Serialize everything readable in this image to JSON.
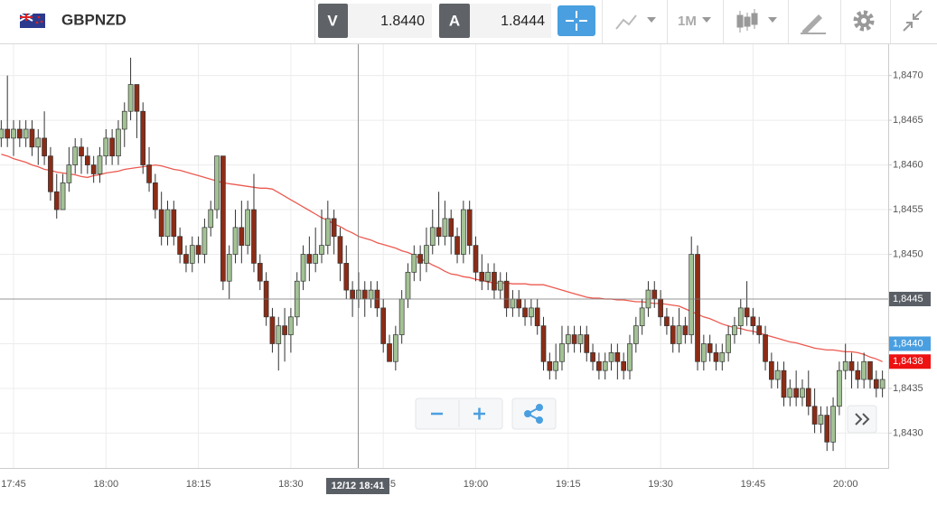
{
  "toolbar": {
    "symbol": "GBPNZD",
    "bid": {
      "label": "V",
      "price": "1.8440"
    },
    "ask": {
      "label": "A",
      "price": "1.8444"
    },
    "timeframe": "1M"
  },
  "chart_data": {
    "type": "candlestick",
    "categories": [
      null,
      null,
      "17:45",
      null,
      null,
      null,
      null,
      null,
      null,
      null,
      null,
      null,
      null,
      null,
      null,
      null,
      null,
      "18:00",
      null,
      null,
      null,
      null,
      null,
      null,
      null,
      null,
      null,
      null,
      null,
      null,
      null,
      null,
      "18:15",
      null,
      null,
      null,
      null,
      null,
      null,
      null,
      null,
      null,
      null,
      null,
      null,
      null,
      null,
      "18:30",
      null,
      null,
      null,
      null,
      null,
      null,
      null,
      null,
      null,
      null,
      null,
      null,
      null,
      null,
      "18:45",
      null,
      null,
      null,
      null,
      null,
      null,
      null,
      null,
      null,
      null,
      null,
      null,
      null,
      null,
      "19:00",
      null,
      null,
      null,
      null,
      null,
      null,
      null,
      null,
      null,
      null,
      null,
      null,
      null,
      null,
      "19:15",
      null,
      null,
      null,
      null,
      null,
      null,
      null,
      null,
      null,
      null,
      null,
      null,
      null,
      null,
      "19:30",
      null,
      null,
      null,
      null,
      null,
      null,
      null,
      null,
      null,
      null,
      null,
      null,
      null,
      null,
      "19:45",
      null,
      null,
      null,
      null,
      null,
      null,
      null,
      null,
      null,
      null,
      null,
      null,
      null,
      null,
      "20:00",
      null,
      null,
      null,
      null,
      null,
      null
    ],
    "open": [
      1.8463,
      1.8464,
      1.8463,
      1.8464,
      1.8463,
      1.8464,
      1.8462,
      1.8463,
      1.8461,
      1.8457,
      1.8455,
      1.8458,
      1.846,
      1.8462,
      1.8461,
      1.846,
      1.8459,
      1.8461,
      1.8463,
      1.8461,
      1.8464,
      1.8466,
      1.8469,
      1.8466,
      1.846,
      1.8458,
      1.8455,
      1.8452,
      1.8455,
      1.8452,
      1.845,
      1.8449,
      1.8451,
      1.845,
      1.8453,
      1.8455,
      1.8461,
      1.8447,
      1.845,
      1.8453,
      1.8451,
      1.8455,
      1.8449,
      1.8447,
      1.8443,
      1.844,
      1.8442,
      1.8441,
      1.8443,
      1.8447,
      1.845,
      1.8449,
      1.845,
      1.8451,
      1.8454,
      1.8452,
      1.8449,
      1.8446,
      1.8445,
      1.8446,
      1.8445,
      1.8446,
      1.8444,
      1.844,
      1.8438,
      1.8441,
      1.8445,
      1.8448,
      1.845,
      1.8449,
      1.8451,
      1.8453,
      1.8452,
      1.8454,
      1.8452,
      1.845,
      1.8455,
      1.8451,
      1.8448,
      1.8447,
      1.8448,
      1.8446,
      1.8447,
      1.8444,
      1.8445,
      1.8444,
      1.8443,
      1.8444,
      1.8442,
      1.8438,
      1.8437,
      1.8438,
      1.844,
      1.8441,
      1.844,
      1.8441,
      1.8439,
      1.8438,
      1.8437,
      1.8438,
      1.8439,
      1.8438,
      1.8437,
      1.844,
      1.8442,
      1.8444,
      1.8446,
      1.8445,
      1.8443,
      1.8442,
      1.844,
      1.8442,
      1.8441,
      1.845,
      1.8438,
      1.844,
      1.8439,
      1.8438,
      1.8439,
      1.8441,
      1.8442,
      1.8444,
      1.8443,
      1.8442,
      1.8441,
      1.8438,
      1.8436,
      1.8437,
      1.8434,
      1.8435,
      1.8434,
      1.8435,
      1.8433,
      1.8431,
      1.8432,
      1.8429,
      1.8433,
      1.8437,
      1.8438,
      1.8437,
      1.8436,
      1.8438,
      1.8436,
      1.8435
    ],
    "high": [
      1.8465,
      1.847,
      1.8465,
      1.8465,
      1.8465,
      1.8465,
      1.8464,
      1.8466,
      1.8462,
      1.8459,
      1.8459,
      1.8462,
      1.8463,
      1.8463,
      1.8462,
      1.8461,
      1.8462,
      1.8464,
      1.8464,
      1.8465,
      1.8467,
      1.8472,
      1.8469,
      1.8467,
      1.8462,
      1.8459,
      1.8457,
      1.8456,
      1.8456,
      1.8453,
      1.8451,
      1.8452,
      1.8452,
      1.8454,
      1.8456,
      1.8461,
      1.8461,
      1.8451,
      1.8455,
      1.8456,
      1.8456,
      1.8459,
      1.845,
      1.8448,
      1.8444,
      1.8443,
      1.8444,
      1.8444,
      1.8448,
      1.8451,
      1.8452,
      1.8453,
      1.8455,
      1.8456,
      1.8455,
      1.8453,
      1.8451,
      1.8447,
      1.8448,
      1.8447,
      1.8447,
      1.8447,
      1.8445,
      1.8441,
      1.8442,
      1.8446,
      1.8449,
      1.8451,
      1.8451,
      1.8453,
      1.8455,
      1.8457,
      1.8456,
      1.8455,
      1.8453,
      1.8456,
      1.8456,
      1.8452,
      1.845,
      1.8449,
      1.8449,
      1.8448,
      1.8448,
      1.8446,
      1.8446,
      1.8445,
      1.8445,
      1.8445,
      1.8443,
      1.8439,
      1.844,
      1.8442,
      1.8442,
      1.8442,
      1.8442,
      1.8442,
      1.844,
      1.8439,
      1.8439,
      1.844,
      1.844,
      1.8439,
      1.8441,
      1.8443,
      1.8445,
      1.8447,
      1.8447,
      1.8446,
      1.8444,
      1.8443,
      1.8444,
      1.8443,
      1.8452,
      1.8451,
      1.8441,
      1.8441,
      1.844,
      1.844,
      1.8442,
      1.8443,
      1.8445,
      1.8447,
      1.8444,
      1.8443,
      1.8442,
      1.8439,
      1.8438,
      1.8438,
      1.8436,
      1.8437,
      1.8436,
      1.8437,
      1.8435,
      1.8433,
      1.8433,
      1.8434,
      1.8438,
      1.844,
      1.8439,
      1.8438,
      1.8439,
      1.8438,
      1.8437,
      1.8437
    ],
    "low": [
      1.8462,
      1.8462,
      1.8461,
      1.8462,
      1.8462,
      1.8461,
      1.846,
      1.846,
      1.8456,
      1.8454,
      1.8455,
      1.8457,
      1.8459,
      1.8459,
      1.8459,
      1.8458,
      1.8458,
      1.846,
      1.846,
      1.846,
      1.8462,
      1.8465,
      1.8463,
      1.8459,
      1.8457,
      1.8454,
      1.8451,
      1.8451,
      1.8451,
      1.8449,
      1.8448,
      1.8448,
      1.8449,
      1.8449,
      1.8452,
      1.8454,
      1.8446,
      1.8445,
      1.8449,
      1.8449,
      1.845,
      1.8448,
      1.8446,
      1.8442,
      1.8439,
      1.8437,
      1.8438,
      1.8439,
      1.8442,
      1.8446,
      1.8447,
      1.8448,
      1.8449,
      1.845,
      1.845,
      1.8447,
      1.8445,
      1.8443,
      1.8444,
      1.8443,
      1.8444,
      1.8443,
      1.8439,
      1.8438,
      1.8437,
      1.844,
      1.8444,
      1.8447,
      1.8447,
      1.8448,
      1.845,
      1.8451,
      1.8451,
      1.845,
      1.8449,
      1.8449,
      1.845,
      1.8447,
      1.8446,
      1.8446,
      1.8445,
      1.8445,
      1.8443,
      1.8443,
      1.8443,
      1.8442,
      1.8442,
      1.8441,
      1.8437,
      1.8436,
      1.8436,
      1.8437,
      1.8439,
      1.8439,
      1.8439,
      1.8438,
      1.8437,
      1.8436,
      1.8436,
      1.8437,
      1.8436,
      1.8436,
      1.8436,
      1.8439,
      1.8441,
      1.8443,
      1.8444,
      1.8442,
      1.8441,
      1.8439,
      1.8439,
      1.844,
      1.844,
      1.8437,
      1.8437,
      1.8438,
      1.8437,
      1.8437,
      1.8438,
      1.844,
      1.8441,
      1.8442,
      1.8441,
      1.844,
      1.8437,
      1.8435,
      1.8435,
      1.8433,
      1.8433,
      1.8433,
      1.8433,
      1.8432,
      1.843,
      1.843,
      1.8428,
      1.8428,
      1.8432,
      1.8436,
      1.8435,
      1.8435,
      1.8435,
      1.8435,
      1.8434,
      1.8434
    ],
    "close": [
      1.8464,
      1.8463,
      1.8464,
      1.8463,
      1.8464,
      1.8462,
      1.8463,
      1.8461,
      1.8457,
      1.8455,
      1.8458,
      1.846,
      1.8462,
      1.8461,
      1.846,
      1.8459,
      1.8461,
      1.8463,
      1.8461,
      1.8464,
      1.8466,
      1.8469,
      1.8466,
      1.846,
      1.8458,
      1.8455,
      1.8452,
      1.8455,
      1.8452,
      1.845,
      1.8449,
      1.8451,
      1.845,
      1.8453,
      1.8455,
      1.8461,
      1.8447,
      1.845,
      1.8453,
      1.8451,
      1.8455,
      1.8449,
      1.8447,
      1.8443,
      1.844,
      1.8442,
      1.8441,
      1.8443,
      1.8447,
      1.845,
      1.8449,
      1.845,
      1.8451,
      1.8454,
      1.8452,
      1.8449,
      1.8446,
      1.8445,
      1.8446,
      1.8445,
      1.8446,
      1.8444,
      1.844,
      1.8438,
      1.8441,
      1.8445,
      1.8448,
      1.845,
      1.8449,
      1.8451,
      1.8453,
      1.8452,
      1.8454,
      1.8452,
      1.845,
      1.8455,
      1.8451,
      1.8448,
      1.8447,
      1.8448,
      1.8446,
      1.8447,
      1.8444,
      1.8445,
      1.8444,
      1.8443,
      1.8444,
      1.8442,
      1.8438,
      1.8437,
      1.8438,
      1.844,
      1.8441,
      1.844,
      1.8441,
      1.8439,
      1.8438,
      1.8437,
      1.8438,
      1.8439,
      1.8438,
      1.8437,
      1.844,
      1.8442,
      1.8444,
      1.8446,
      1.8445,
      1.8443,
      1.8442,
      1.844,
      1.8442,
      1.8441,
      1.845,
      1.8438,
      1.844,
      1.8439,
      1.8438,
      1.8439,
      1.8441,
      1.8442,
      1.8444,
      1.8443,
      1.8442,
      1.8441,
      1.8438,
      1.8436,
      1.8437,
      1.8434,
      1.8435,
      1.8434,
      1.8435,
      1.8433,
      1.8431,
      1.8432,
      1.8429,
      1.8433,
      1.8437,
      1.8438,
      1.8437,
      1.8436,
      1.8438,
      1.8436,
      1.8435,
      1.8436
    ],
    "up_color": "#a3c295",
    "down_color": "#8c2c16",
    "ma": {
      "color": "#ec5a50",
      "values": [
        1.84612,
        1.8461,
        1.84607,
        1.84605,
        1.84603,
        1.846,
        1.84598,
        1.84595,
        1.84594,
        1.84592,
        1.84591,
        1.8459,
        1.84589,
        1.84587,
        1.84586,
        1.84588,
        1.84589,
        1.84591,
        1.84592,
        1.84593,
        1.84595,
        1.84596,
        1.84597,
        1.84598,
        1.84599,
        1.846,
        1.84599,
        1.84597,
        1.84595,
        1.84594,
        1.84592,
        1.8459,
        1.84588,
        1.84586,
        1.84584,
        1.84582,
        1.8458,
        1.84579,
        1.84578,
        1.84577,
        1.84576,
        1.84575,
        1.84574,
        1.84574,
        1.84573,
        1.84569,
        1.84565,
        1.84561,
        1.84557,
        1.84553,
        1.84549,
        1.84545,
        1.84541,
        1.84538,
        1.84534,
        1.84531,
        1.84527,
        1.84524,
        1.8452,
        1.84518,
        1.84516,
        1.84513,
        1.84511,
        1.84509,
        1.84507,
        1.84504,
        1.84502,
        1.84499,
        1.84495,
        1.84492,
        1.84488,
        1.84485,
        1.84481,
        1.84478,
        1.84477,
        1.84475,
        1.84474,
        1.84472,
        1.84471,
        1.84469,
        1.84468,
        1.84468,
        1.84468,
        1.84467,
        1.84467,
        1.84467,
        1.84466,
        1.84466,
        1.84466,
        1.84464,
        1.84462,
        1.8446,
        1.84458,
        1.84456,
        1.84454,
        1.84452,
        1.84451,
        1.84451,
        1.8445,
        1.8445,
        1.84449,
        1.84449,
        1.84448,
        1.84447,
        1.84447,
        1.84446,
        1.84445,
        1.84445,
        1.84444,
        1.84443,
        1.84442,
        1.84439,
        1.84436,
        1.84433,
        1.8443,
        1.84428,
        1.84425,
        1.84422,
        1.8442,
        1.84418,
        1.84417,
        1.84415,
        1.84414,
        1.84412,
        1.8441,
        1.84408,
        1.84406,
        1.84404,
        1.84402,
        1.84401,
        1.84399,
        1.84397,
        1.84395,
        1.84394,
        1.84393,
        1.84393,
        1.84392,
        1.84391,
        1.84391,
        1.8439,
        1.84388,
        1.84385,
        1.84383,
        1.8438
      ]
    },
    "ylim": [
      1.84261,
      1.84735
    ],
    "yticks": [
      {
        "value": 1.843,
        "label": "1,8430"
      },
      {
        "value": 1.8435,
        "label": "1,8435"
      },
      {
        "value": 1.844,
        "label": "1,8440"
      },
      {
        "value": 1.8445,
        "label": "1,8445"
      },
      {
        "value": 1.845,
        "label": "1,8450"
      },
      {
        "value": 1.8455,
        "label": "1,8455"
      },
      {
        "value": 1.846,
        "label": "1,8460"
      },
      {
        "value": 1.8465,
        "label": "1,8465"
      },
      {
        "value": 1.847,
        "label": "1,8470"
      }
    ],
    "grid": true,
    "price_tags": [
      {
        "value": 1.8445,
        "label": "1,8445",
        "color": "#5a5f66"
      },
      {
        "value": 1.844,
        "label": "1,8440",
        "color": "#4a9fe0"
      },
      {
        "value": 1.8438,
        "label": "1,8438",
        "color": "#ee1111"
      }
    ],
    "crosshair_time": "12/12 18:41"
  }
}
